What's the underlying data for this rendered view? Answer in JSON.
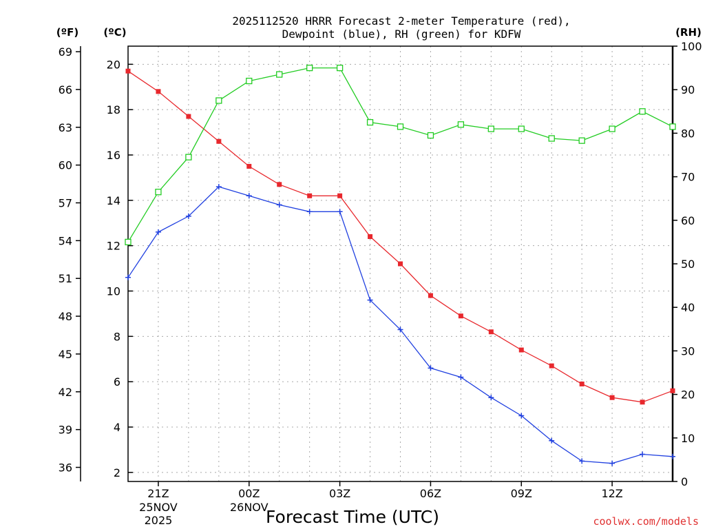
{
  "chart_data": {
    "type": "line",
    "title_line1": "2025112520 HRRR Forecast 2-meter Temperature (red),",
    "title_line2": "Dewpoint (blue), RH (green) for KDFW",
    "xlabel": "Forecast Time (UTC)",
    "watermark": "coolwx.com/models",
    "unit_f": "(ºF)",
    "unit_c": "(ºC)",
    "unit_rh": "(RH)",
    "hours": [
      20,
      21,
      22,
      23,
      0,
      1,
      2,
      3,
      4,
      5,
      6,
      7,
      8,
      9,
      10,
      11,
      12,
      13,
      14
    ],
    "x_ticks": [
      {
        "label": "21Z",
        "date": "25NOV",
        "year": "2025",
        "hour_index": 1
      },
      {
        "label": "00Z",
        "date": "26NOV",
        "year": "",
        "hour_index": 4
      },
      {
        "label": "03Z",
        "date": "",
        "year": "",
        "hour_index": 7
      },
      {
        "label": "06Z",
        "date": "",
        "year": "",
        "hour_index": 10
      },
      {
        "label": "09Z",
        "date": "",
        "year": "",
        "hour_index": 13
      },
      {
        "label": "12Z",
        "date": "",
        "year": "",
        "hour_index": 16
      }
    ],
    "y_left_c": {
      "ticks": [
        "2",
        "4",
        "6",
        "8",
        "10",
        "12",
        "14",
        "16",
        "18",
        "20"
      ],
      "range": [
        1.6,
        20.8
      ]
    },
    "y_left_f": {
      "ticks": [
        "36",
        "39",
        "42",
        "45",
        "48",
        "51",
        "54",
        "57",
        "60",
        "63",
        "66",
        "69"
      ]
    },
    "y_right_rh": {
      "ticks": [
        "0",
        "10",
        "20",
        "30",
        "40",
        "50",
        "60",
        "70",
        "80",
        "90",
        "100"
      ],
      "range": [
        0,
        100
      ]
    },
    "series": [
      {
        "name": "Temperature",
        "color": "#e8282d",
        "marker": "filled-square",
        "values": [
          19.7,
          18.8,
          17.7,
          16.6,
          15.5,
          14.7,
          14.2,
          14.2,
          12.4,
          11.2,
          9.8,
          8.9,
          8.2,
          7.4,
          6.7,
          5.9,
          5.3,
          5.1,
          5.6
        ]
      },
      {
        "name": "Dewpoint",
        "color": "#2040e0",
        "marker": "plus",
        "values": [
          10.6,
          12.6,
          13.3,
          14.6,
          14.2,
          13.8,
          13.5,
          13.5,
          9.6,
          8.3,
          6.6,
          6.2,
          5.3,
          4.5,
          3.4,
          2.5,
          2.4,
          2.8,
          2.7
        ]
      },
      {
        "name": "RH",
        "color": "#22cc22",
        "marker": "open-square",
        "values": [
          55,
          66.5,
          74.5,
          87.5,
          92,
          93.5,
          95,
          95,
          82.5,
          81.5,
          79.5,
          82,
          81,
          81,
          78.8,
          78.3,
          81,
          85,
          81.5
        ]
      }
    ]
  }
}
